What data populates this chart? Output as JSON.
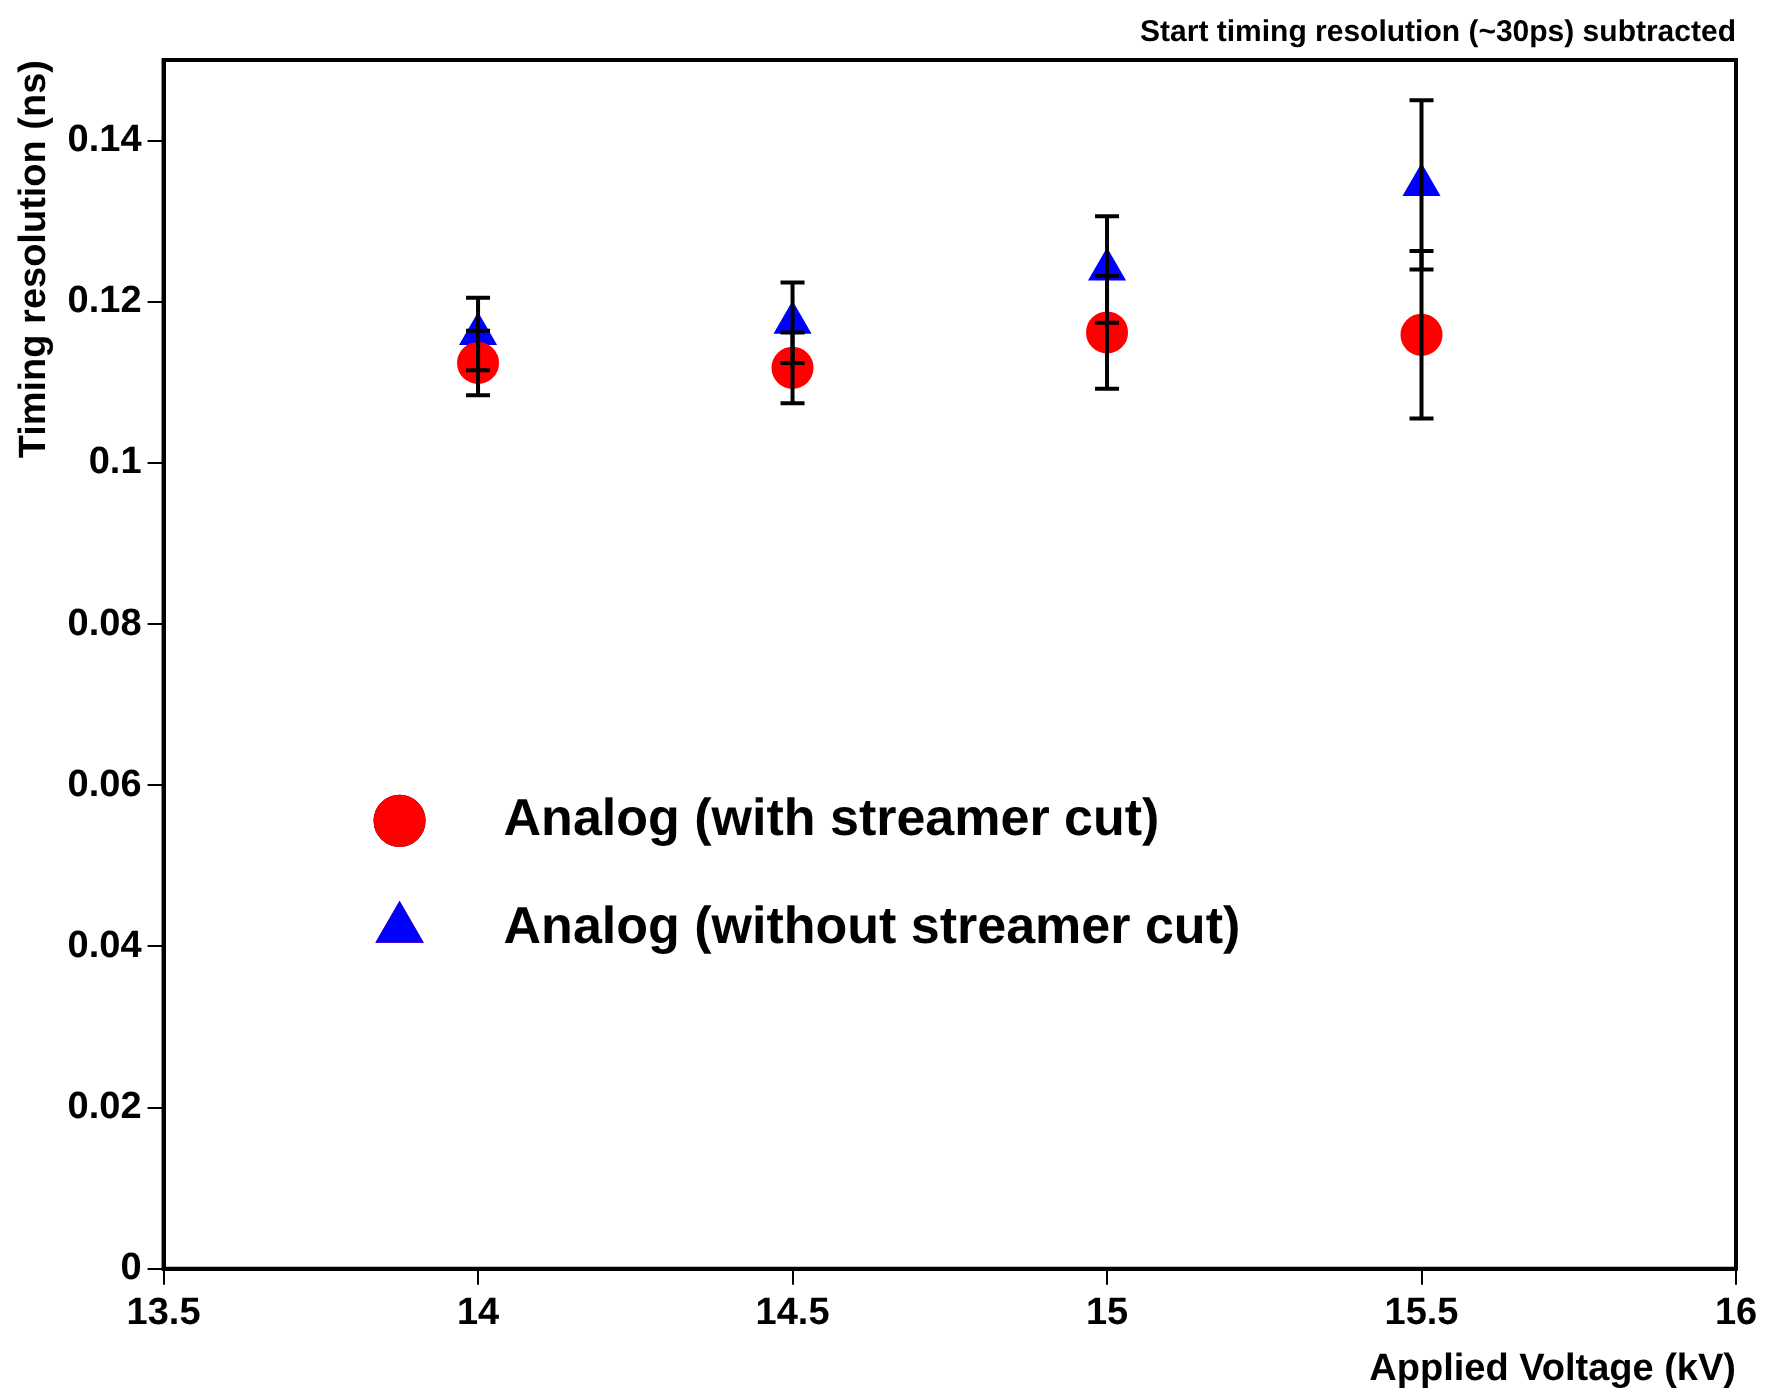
{
  "chart_data": {
    "type": "scatter",
    "title": "Start timing resolution (~30ps) subtracted",
    "xlabel": "Applied Voltage (kV)",
    "ylabel": "Timing resolution (ns)",
    "x": [
      14,
      14.5,
      15,
      15.5
    ],
    "series": [
      {
        "name": "Analog (with streamer cut)",
        "color": "#ff0000",
        "marker": "circle",
        "values": [
          0.1124,
          0.1118,
          0.1162,
          0.1159
        ],
        "errors": [
          0.004,
          0.0044,
          0.007,
          0.0104
        ]
      },
      {
        "name": "Analog (without streamer cut)",
        "color": "#0000ff",
        "marker": "triangle",
        "values": [
          0.116,
          0.1174,
          0.124,
          0.1345
        ],
        "errors": [
          0.0045,
          0.005,
          0.0066,
          0.0105
        ]
      }
    ],
    "xlim": [
      13.5,
      16
    ],
    "xticks": [
      13.5,
      14,
      14.5,
      15,
      15.5,
      16
    ],
    "ylim": [
      0,
      0.15
    ],
    "yticks": [
      0,
      0.02,
      0.04,
      0.06,
      0.08,
      0.1,
      0.12,
      0.14
    ],
    "grid": false,
    "legend": "bottom left"
  }
}
